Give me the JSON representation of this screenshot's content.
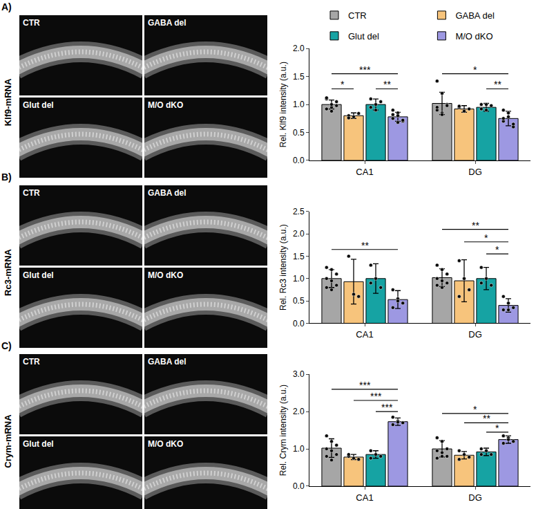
{
  "image_panels": [
    {
      "letter": "A)",
      "label": "Klf9-mRNA",
      "images": [
        "CTR",
        "GABA del",
        "Glut del",
        "M/O dKO"
      ]
    },
    {
      "letter": "B)",
      "label": "Rc3-mRNA",
      "images": [
        "CTR",
        "GABA del",
        "Glut del",
        "M/O dKO"
      ]
    },
    {
      "letter": "C)",
      "label": "Crym-mRNA",
      "images": [
        "CTR",
        "GABA del",
        "Glut del",
        "M/O dKO"
      ]
    }
  ],
  "chart_data": [
    {
      "type": "bar",
      "ylabel": "Rel. Klf9 intensity (a.u.)",
      "categories": [
        "CA1",
        "DG"
      ],
      "legend": "top",
      "grid": false,
      "ylim": [
        0,
        2
      ],
      "yticks": [
        {
          "value": 0,
          "label": "0.0"
        },
        0.5,
        {
          "value": 1,
          "label": "1.0"
        },
        1.5,
        {
          "value": 2,
          "label": "2.0"
        }
      ],
      "series": [
        {
          "name": "CTR",
          "color": "#a6a6a6",
          "values": [
            1.0,
            1.02
          ],
          "error": [
            0.08,
            0.2
          ],
          "points": [
            [
              1.1,
              0.95,
              1.05,
              0.92,
              1.0,
              0.98,
              1.12,
              0.88
            ],
            [
              1.42,
              1.2,
              1.0,
              0.9,
              0.85,
              0.98,
              0.95,
              0.82
            ]
          ]
        },
        {
          "name": "GABA del",
          "color": "#f7c47c",
          "values": [
            0.8,
            0.92
          ],
          "error": [
            0.05,
            0.06
          ],
          "points": [
            [
              0.8,
              0.78,
              0.84,
              0.76
            ],
            [
              0.95,
              0.88,
              0.92,
              0.97
            ]
          ]
        },
        {
          "name": "Glut del",
          "color": "#16a3a3",
          "values": [
            1.0,
            0.95
          ],
          "error": [
            0.1,
            0.07
          ],
          "points": [
            [
              1.1,
              0.9,
              1.05,
              0.95,
              1.0
            ],
            [
              1.0,
              0.9,
              0.98,
              0.92,
              1.0
            ]
          ]
        },
        {
          "name": "M/O dKO",
          "color": "#9d98e2",
          "values": [
            0.78,
            0.75
          ],
          "error": [
            0.08,
            0.13
          ],
          "points": [
            [
              0.82,
              0.85,
              0.7,
              0.75,
              0.8,
              0.72,
              0.9,
              0.68
            ],
            [
              0.9,
              0.85,
              0.6,
              0.7,
              0.78,
              0.65,
              0.75
            ]
          ]
        }
      ],
      "significance": [
        {
          "category": "CA1",
          "from": "CTR",
          "to": "M/O dKO",
          "label": "***",
          "y": 1.55
        },
        {
          "category": "CA1",
          "from": "CTR",
          "to": "GABA del",
          "label": "*",
          "y": 1.28
        },
        {
          "category": "CA1",
          "from": "Glut del",
          "to": "M/O dKO",
          "label": "**",
          "y": 1.28
        },
        {
          "category": "DG",
          "from": "CTR",
          "to": "M/O dKO",
          "label": "*",
          "y": 1.55
        },
        {
          "category": "DG",
          "from": "Glut del",
          "to": "M/O dKO",
          "label": "**",
          "y": 1.28
        }
      ]
    },
    {
      "type": "bar",
      "ylabel": "Rel. Rc3 intensity (a.u.)",
      "categories": [
        "CA1",
        "DG"
      ],
      "grid": false,
      "ylim": [
        0,
        2.5
      ],
      "yticks": [
        {
          "value": 0,
          "label": "0.0"
        },
        0.5,
        {
          "value": 1,
          "label": "1.0"
        },
        1.5,
        {
          "value": 2,
          "label": "2.0"
        },
        2.5
      ],
      "series": [
        {
          "name": "CTR",
          "color": "#a6a6a6",
          "values": [
            1.0,
            1.02
          ],
          "error": [
            0.2,
            0.2
          ],
          "points": [
            [
              1.25,
              1.2,
              1.1,
              1.0,
              0.95,
              0.85,
              0.8,
              0.75
            ],
            [
              1.3,
              1.2,
              1.1,
              1.0,
              0.95,
              0.9,
              0.85,
              0.8
            ]
          ]
        },
        {
          "name": "GABA del",
          "color": "#f7c47c",
          "values": [
            0.93,
            0.95
          ],
          "error": [
            0.5,
            0.47
          ],
          "points": [
            [
              1.5,
              0.65,
              0.6
            ],
            [
              1.4,
              1.0,
              0.75,
              0.6
            ]
          ]
        },
        {
          "name": "Glut del",
          "color": "#16a3a3",
          "values": [
            1.0,
            1.0
          ],
          "error": [
            0.33,
            0.25
          ],
          "points": [
            [
              1.3,
              1.0,
              0.8,
              0.9
            ],
            [
              1.25,
              1.0,
              0.85,
              0.9
            ]
          ]
        },
        {
          "name": "M/O dKO",
          "color": "#9d98e2",
          "values": [
            0.53,
            0.4
          ],
          "error": [
            0.2,
            0.15
          ],
          "points": [
            [
              0.75,
              0.55,
              0.45,
              0.35,
              0.5
            ],
            [
              0.6,
              0.45,
              0.35,
              0.3,
              0.3
            ]
          ]
        }
      ],
      "significance": [
        {
          "category": "CA1",
          "from": "CTR",
          "to": "M/O dKO",
          "label": "**",
          "y": 1.65
        },
        {
          "category": "DG",
          "from": "CTR",
          "to": "M/O dKO",
          "label": "**",
          "y": 2.1
        },
        {
          "category": "DG",
          "from": "GABA del",
          "to": "M/O dKO",
          "label": "*",
          "y": 1.82
        },
        {
          "category": "DG",
          "from": "Glut del",
          "to": "M/O dKO",
          "label": "*",
          "y": 1.55
        }
      ]
    },
    {
      "type": "bar",
      "ylabel": "Rel. Crym intensity (a.u.)",
      "categories": [
        "CA1",
        "DG"
      ],
      "grid": false,
      "ylim": [
        0,
        3
      ],
      "yticks": [
        {
          "value": 0,
          "label": "0.0"
        },
        {
          "value": 1,
          "label": "1.0"
        },
        {
          "value": 2,
          "label": "2.0"
        },
        {
          "value": 3,
          "label": "3.0"
        }
      ],
      "series": [
        {
          "name": "CTR",
          "color": "#a6a6a6",
          "values": [
            1.02,
            1.0
          ],
          "error": [
            0.25,
            0.22
          ],
          "points": [
            [
              1.35,
              1.2,
              1.1,
              1.0,
              0.95,
              0.85,
              0.8,
              0.7
            ],
            [
              1.3,
              1.2,
              1.0,
              0.95,
              0.9,
              0.8,
              0.75,
              0.8
            ]
          ]
        },
        {
          "name": "GABA del",
          "color": "#f7c47c",
          "values": [
            0.78,
            0.83
          ],
          "error": [
            0.07,
            0.1
          ],
          "points": [
            [
              0.8,
              0.75,
              0.72,
              0.85
            ],
            [
              0.95,
              0.85,
              0.78,
              0.72
            ]
          ]
        },
        {
          "name": "Glut del",
          "color": "#16a3a3",
          "values": [
            0.85,
            0.92
          ],
          "error": [
            0.1,
            0.1
          ],
          "points": [
            [
              0.95,
              0.85,
              0.8,
              0.75
            ],
            [
              1.0,
              0.95,
              0.85,
              0.85
            ]
          ]
        },
        {
          "name": "M/O dKO",
          "color": "#9d98e2",
          "values": [
            1.73,
            1.25
          ],
          "error": [
            0.1,
            0.1
          ],
          "points": [
            [
              1.85,
              1.75,
              1.7,
              1.65,
              1.72
            ],
            [
              1.35,
              1.3,
              1.2,
              1.15,
              1.25
            ]
          ]
        }
      ],
      "significance": [
        {
          "category": "CA1",
          "from": "CTR",
          "to": "M/O dKO",
          "label": "***",
          "y": 2.6
        },
        {
          "category": "CA1",
          "from": "GABA del",
          "to": "M/O dKO",
          "label": "***",
          "y": 2.3
        },
        {
          "category": "CA1",
          "from": "Glut del",
          "to": "M/O dKO",
          "label": "***",
          "y": 2.0
        },
        {
          "category": "DG",
          "from": "CTR",
          "to": "M/O dKO",
          "label": "*",
          "y": 1.95
        },
        {
          "category": "DG",
          "from": "GABA del",
          "to": "M/O dKO",
          "label": "**",
          "y": 1.7
        },
        {
          "category": "DG",
          "from": "Glut del",
          "to": "M/O dKO",
          "label": "*",
          "y": 1.45
        }
      ]
    }
  ]
}
